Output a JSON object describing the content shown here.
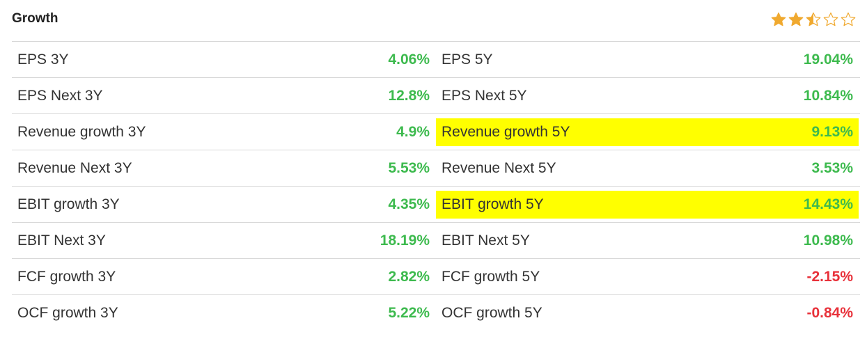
{
  "widget": {
    "title": "Growth",
    "rating": {
      "value": 2.5,
      "max": 5,
      "star_color": "#f0a92f"
    }
  },
  "colors": {
    "positive": "#3dba4e",
    "negative": "#e8313a",
    "highlight": "#ffff00"
  },
  "rows": [
    {
      "left": {
        "label": "EPS 3Y",
        "value": "4.06%"
      },
      "right": {
        "label": "EPS 5Y",
        "value": "19.04%"
      }
    },
    {
      "left": {
        "label": "EPS Next 3Y",
        "value": "12.8%"
      },
      "right": {
        "label": "EPS Next 5Y",
        "value": "10.84%"
      }
    },
    {
      "left": {
        "label": "Revenue growth 3Y",
        "value": "4.9%"
      },
      "right": {
        "label": "Revenue growth 5Y",
        "value": "9.13%"
      }
    },
    {
      "left": {
        "label": "Revenue Next 3Y",
        "value": "5.53%"
      },
      "right": {
        "label": "Revenue Next 5Y",
        "value": "3.53%"
      }
    },
    {
      "left": {
        "label": "EBIT growth 3Y",
        "value": "4.35%"
      },
      "right": {
        "label": "EBIT growth 5Y",
        "value": "14.43%"
      }
    },
    {
      "left": {
        "label": "EBIT Next 3Y",
        "value": "18.19%"
      },
      "right": {
        "label": "EBIT Next 5Y",
        "value": "10.98%"
      }
    },
    {
      "left": {
        "label": "FCF growth 3Y",
        "value": "2.82%"
      },
      "right": {
        "label": "FCF growth 5Y",
        "value": "-2.15%"
      }
    },
    {
      "left": {
        "label": "OCF growth 3Y",
        "value": "5.22%"
      },
      "right": {
        "label": "OCF growth 5Y",
        "value": "-0.84%"
      }
    }
  ]
}
